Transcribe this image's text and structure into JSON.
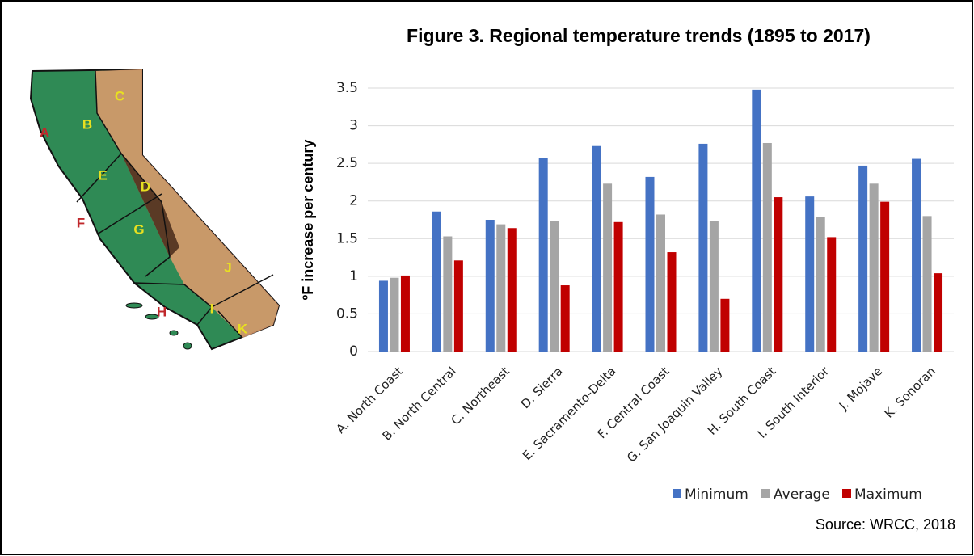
{
  "chart_data": {
    "type": "bar",
    "title": "Figure 3. Regional temperature trends (1895 to 2017)",
    "y_label": "ºF increase per century",
    "source": "Source: WRCC, 2018",
    "categories": [
      "A. North Coast",
      "B. North Central",
      "C. Northeast",
      "D. Sierra",
      "E. Sacramento-Delta",
      "F. Central Coast",
      "G. San Joaquin Valley",
      "H. South Coast",
      "I. South Interior",
      "J. Mojave",
      "K. Sonoran"
    ],
    "series": [
      {
        "name": "Minimum",
        "color": "#4472c4",
        "values": [
          0.94,
          1.86,
          1.75,
          2.57,
          2.73,
          2.32,
          2.76,
          3.48,
          2.06,
          2.47,
          2.56
        ]
      },
      {
        "name": "Average",
        "color": "#a5a5a5",
        "values": [
          0.98,
          1.53,
          1.69,
          1.73,
          2.23,
          1.82,
          1.73,
          2.77,
          1.79,
          2.23,
          1.8
        ]
      },
      {
        "name": "Maximum",
        "color": "#c00000",
        "values": [
          1.01,
          1.21,
          1.64,
          0.88,
          1.72,
          1.32,
          0.7,
          2.05,
          1.52,
          1.99,
          1.04
        ]
      }
    ],
    "ylim": [
      0,
      3.5
    ],
    "yticks": [
      0,
      0.5,
      1,
      1.5,
      2,
      2.5,
      3,
      3.5
    ],
    "grid": true,
    "legend": "bottom"
  },
  "map_labels": [
    "A",
    "B",
    "C",
    "D",
    "E",
    "F",
    "G",
    "H",
    "I",
    "J",
    "K"
  ]
}
